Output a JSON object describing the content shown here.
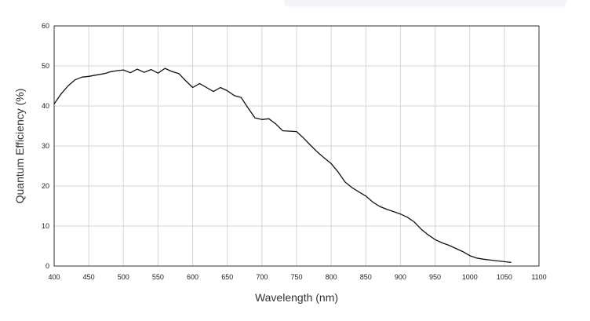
{
  "chart_data": {
    "type": "line",
    "title": "",
    "xlabel": "Wavelength (nm)",
    "ylabel": "Quantum Efficiency (%)",
    "xlim": [
      400,
      1100
    ],
    "ylim": [
      0,
      60
    ],
    "xticks": [
      400,
      450,
      500,
      550,
      600,
      650,
      700,
      750,
      800,
      850,
      900,
      950,
      1000,
      1050,
      1100
    ],
    "yticks": [
      0,
      10,
      20,
      30,
      40,
      50,
      60
    ],
    "grid": true,
    "legend": "none",
    "colors": {
      "line": "#111111",
      "grid": "#d6d6d6",
      "frame": "#333333"
    },
    "series": [
      {
        "points": [
          [
            400,
            40.5
          ],
          [
            410,
            43
          ],
          [
            420,
            45
          ],
          [
            430,
            46.5
          ],
          [
            440,
            47.2
          ],
          [
            450,
            47.4
          ],
          [
            460,
            47.7
          ],
          [
            470,
            48
          ],
          [
            475,
            48.2
          ],
          [
            480,
            48.5
          ],
          [
            490,
            48.8
          ],
          [
            500,
            49
          ],
          [
            510,
            48.3
          ],
          [
            520,
            49.2
          ],
          [
            530,
            48.4
          ],
          [
            540,
            49.1
          ],
          [
            550,
            48.2
          ],
          [
            560,
            49.4
          ],
          [
            570,
            48.6
          ],
          [
            580,
            48.1
          ],
          [
            590,
            46.3
          ],
          [
            600,
            44.6
          ],
          [
            610,
            45.6
          ],
          [
            620,
            44.6
          ],
          [
            630,
            43.6
          ],
          [
            640,
            44.6
          ],
          [
            650,
            43.8
          ],
          [
            660,
            42.6
          ],
          [
            670,
            42.1
          ],
          [
            680,
            39.5
          ],
          [
            690,
            37
          ],
          [
            700,
            36.6
          ],
          [
            710,
            36.8
          ],
          [
            720,
            35.5
          ],
          [
            730,
            33.8
          ],
          [
            740,
            33.7
          ],
          [
            750,
            33.6
          ],
          [
            760,
            32
          ],
          [
            770,
            30.2
          ],
          [
            780,
            28.5
          ],
          [
            790,
            27
          ],
          [
            800,
            25.6
          ],
          [
            810,
            23.5
          ],
          [
            820,
            21
          ],
          [
            830,
            19.6
          ],
          [
            840,
            18.5
          ],
          [
            850,
            17.5
          ],
          [
            860,
            16
          ],
          [
            870,
            14.9
          ],
          [
            880,
            14.2
          ],
          [
            890,
            13.6
          ],
          [
            900,
            13
          ],
          [
            910,
            12.2
          ],
          [
            920,
            11
          ],
          [
            930,
            9.2
          ],
          [
            940,
            7.8
          ],
          [
            950,
            6.6
          ],
          [
            960,
            5.8
          ],
          [
            970,
            5.2
          ],
          [
            980,
            4.4
          ],
          [
            990,
            3.6
          ],
          [
            1000,
            2.6
          ],
          [
            1010,
            2
          ],
          [
            1020,
            1.7
          ],
          [
            1030,
            1.5
          ],
          [
            1040,
            1.3
          ],
          [
            1050,
            1.1
          ],
          [
            1060,
            0.9
          ]
        ]
      }
    ]
  }
}
